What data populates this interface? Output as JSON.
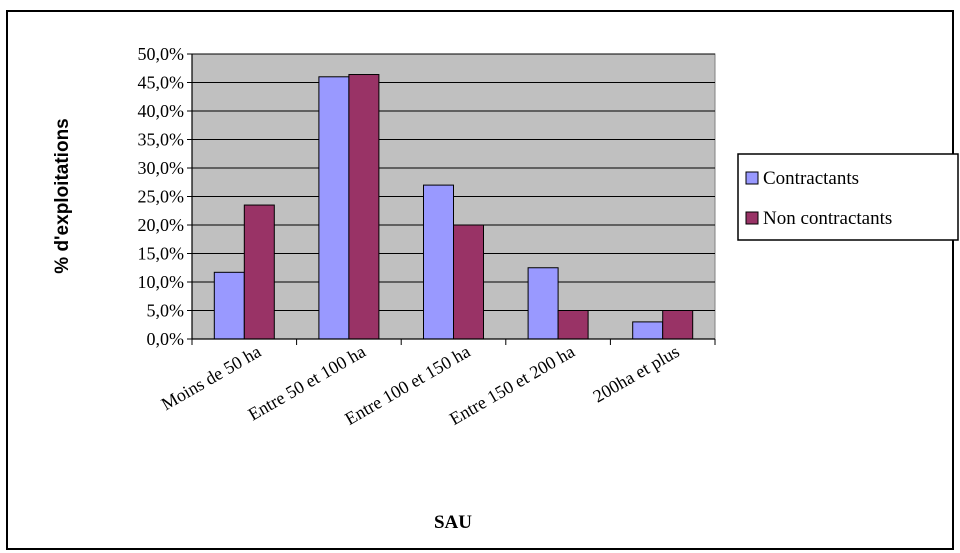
{
  "chart_data": {
    "type": "bar",
    "title": "",
    "xlabel": "SAU",
    "ylabel": "% d'exploitations",
    "categories": [
      "Moins de 50 ha",
      "Entre 50 et 100 ha",
      "Entre 100 et 150 ha",
      "Entre 150 et 200 ha",
      "200ha et plus"
    ],
    "series": [
      {
        "name": "Contractants",
        "values": [
          11.7,
          46.0,
          27.0,
          12.5,
          3.0
        ],
        "color": "#9999ff"
      },
      {
        "name": "Non contractants",
        "values": [
          23.5,
          46.4,
          20.0,
          5.0,
          5.0
        ],
        "color": "#993366"
      }
    ],
    "ylim": [
      0,
      50
    ],
    "yticks": [
      "0,0%",
      "5,0%",
      "10,0%",
      "15,0%",
      "20,0%",
      "25,0%",
      "30,0%",
      "35,0%",
      "40,0%",
      "45,0%",
      "50,0%"
    ],
    "grid": true,
    "plot_background": "#c0c0c0",
    "legend": "right"
  }
}
